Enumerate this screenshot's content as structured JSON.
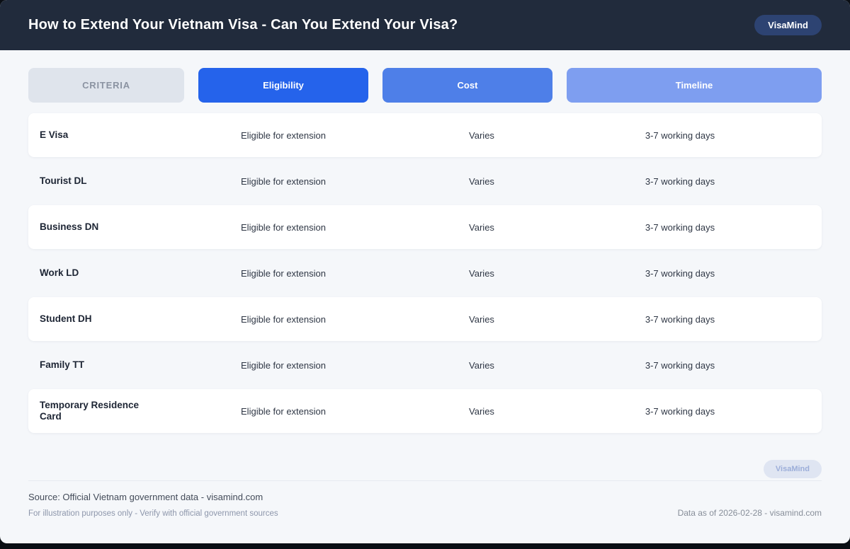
{
  "header": {
    "title": "How to Extend Your Vietnam Visa - Can You Extend Your Visa?",
    "brand_badge": "VisaMind"
  },
  "columns": [
    {
      "label": "CRITERIA",
      "bg": "#dfe4ec",
      "text_color": "#8b93a2"
    },
    {
      "label": "Eligibility",
      "bg": "#2563eb",
      "text_color": "#ffffff"
    },
    {
      "label": "Cost",
      "bg": "#4e7fe8",
      "text_color": "#ffffff"
    },
    {
      "label": "Timeline",
      "bg": "#7e9ef0",
      "text_color": "#ffffff"
    }
  ],
  "table": {
    "rows": [
      {
        "criteria": "E Visa",
        "eligibility": "Eligible for extension",
        "cost": "Varies",
        "timeline": "3-7 working days"
      },
      {
        "criteria": "Tourist DL",
        "eligibility": "Eligible for extension",
        "cost": "Varies",
        "timeline": "3-7 working days"
      },
      {
        "criteria": "Business DN",
        "eligibility": "Eligible for extension",
        "cost": "Varies",
        "timeline": "3-7 working days"
      },
      {
        "criteria": "Work LD",
        "eligibility": "Eligible for extension",
        "cost": "Varies",
        "timeline": "3-7 working days"
      },
      {
        "criteria": "Student DH",
        "eligibility": "Eligible for extension",
        "cost": "Varies",
        "timeline": "3-7 working days"
      },
      {
        "criteria": "Family TT",
        "eligibility": "Eligible for extension",
        "cost": "Varies",
        "timeline": "3-7 working days"
      },
      {
        "criteria": "Temporary Residence Card",
        "eligibility": "Eligible for extension",
        "cost": "Varies",
        "timeline": "3-7 working days"
      }
    ]
  },
  "footer": {
    "brand_badge": "VisaMind",
    "source": "Source: Official Vietnam government data - visamind.com",
    "disclaimer": "For illustration purposes only - Verify with official government sources",
    "data_as_of": "Data as of 2026-02-28 - visamind.com"
  },
  "colors": {
    "header_bg": "#212b3c",
    "header_badge_bg": "#2d4372",
    "page_bg": "#f5f7fa",
    "accent_blue": "#2563eb"
  }
}
